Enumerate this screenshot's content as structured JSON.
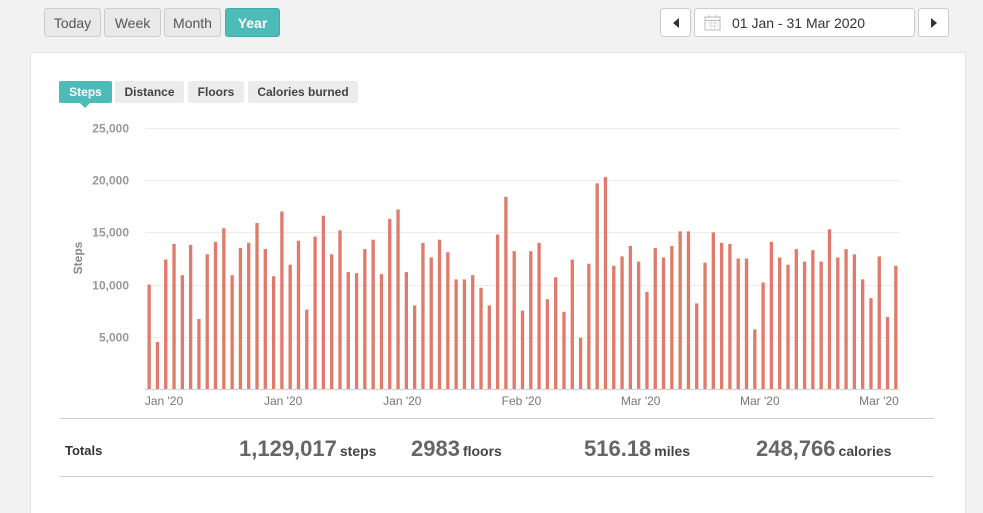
{
  "toolbar": {
    "range_buttons": [
      "Today",
      "Week",
      "Month",
      "Year"
    ],
    "active_range": "Year",
    "date_range": "01 Jan - 31 Mar 2020"
  },
  "metric_tabs": [
    "Steps",
    "Distance",
    "Floors",
    "Calories burned"
  ],
  "active_tab": "Steps",
  "totals": {
    "label": "Totals",
    "steps": {
      "value": "1,129,017",
      "unit": "steps"
    },
    "floors": {
      "value": "2983",
      "unit": "floors"
    },
    "miles": {
      "value": "516.18",
      "unit": "miles"
    },
    "calories": {
      "value": "248,766",
      "unit": "calories"
    }
  },
  "colors": {
    "accent": "#4cbcb8",
    "bar": "#e07a6a"
  },
  "chart_data": {
    "type": "bar",
    "ylabel": "Steps",
    "ylim": [
      0,
      25000
    ],
    "yticks": [
      5000,
      10000,
      15000,
      20000,
      25000
    ],
    "grid": true,
    "xticklabels": [
      "Jan '20",
      "Jan '20",
      "Jan '20",
      "Feb '20",
      "Mar '20",
      "Mar '20",
      "Mar '20"
    ],
    "values": [
      10000,
      4500,
      12400,
      13900,
      10900,
      13800,
      6700,
      12900,
      14100,
      15400,
      10900,
      13500,
      14000,
      15900,
      13400,
      10800,
      17000,
      11900,
      14200,
      7600,
      14600,
      16600,
      12900,
      15200,
      11200,
      11100,
      13400,
      14300,
      11000,
      16300,
      17200,
      11200,
      8000,
      14000,
      12600,
      14300,
      13100,
      10500,
      10500,
      10900,
      9700,
      8000,
      14800,
      18400,
      13200,
      7500,
      13200,
      14000,
      8600,
      10700,
      7400,
      12400,
      4900,
      12000,
      19700,
      20300,
      11800,
      12700,
      13700,
      12200,
      9300,
      13500,
      12600,
      13700,
      15100,
      15100,
      8200,
      12100,
      15000,
      14000,
      13900,
      12500,
      12500,
      5700,
      10200,
      14100,
      12600,
      11900,
      13400,
      12200,
      13300,
      12200,
      15300,
      12600,
      13400,
      12900,
      10500,
      8700,
      12700,
      6900,
      11800
    ]
  }
}
